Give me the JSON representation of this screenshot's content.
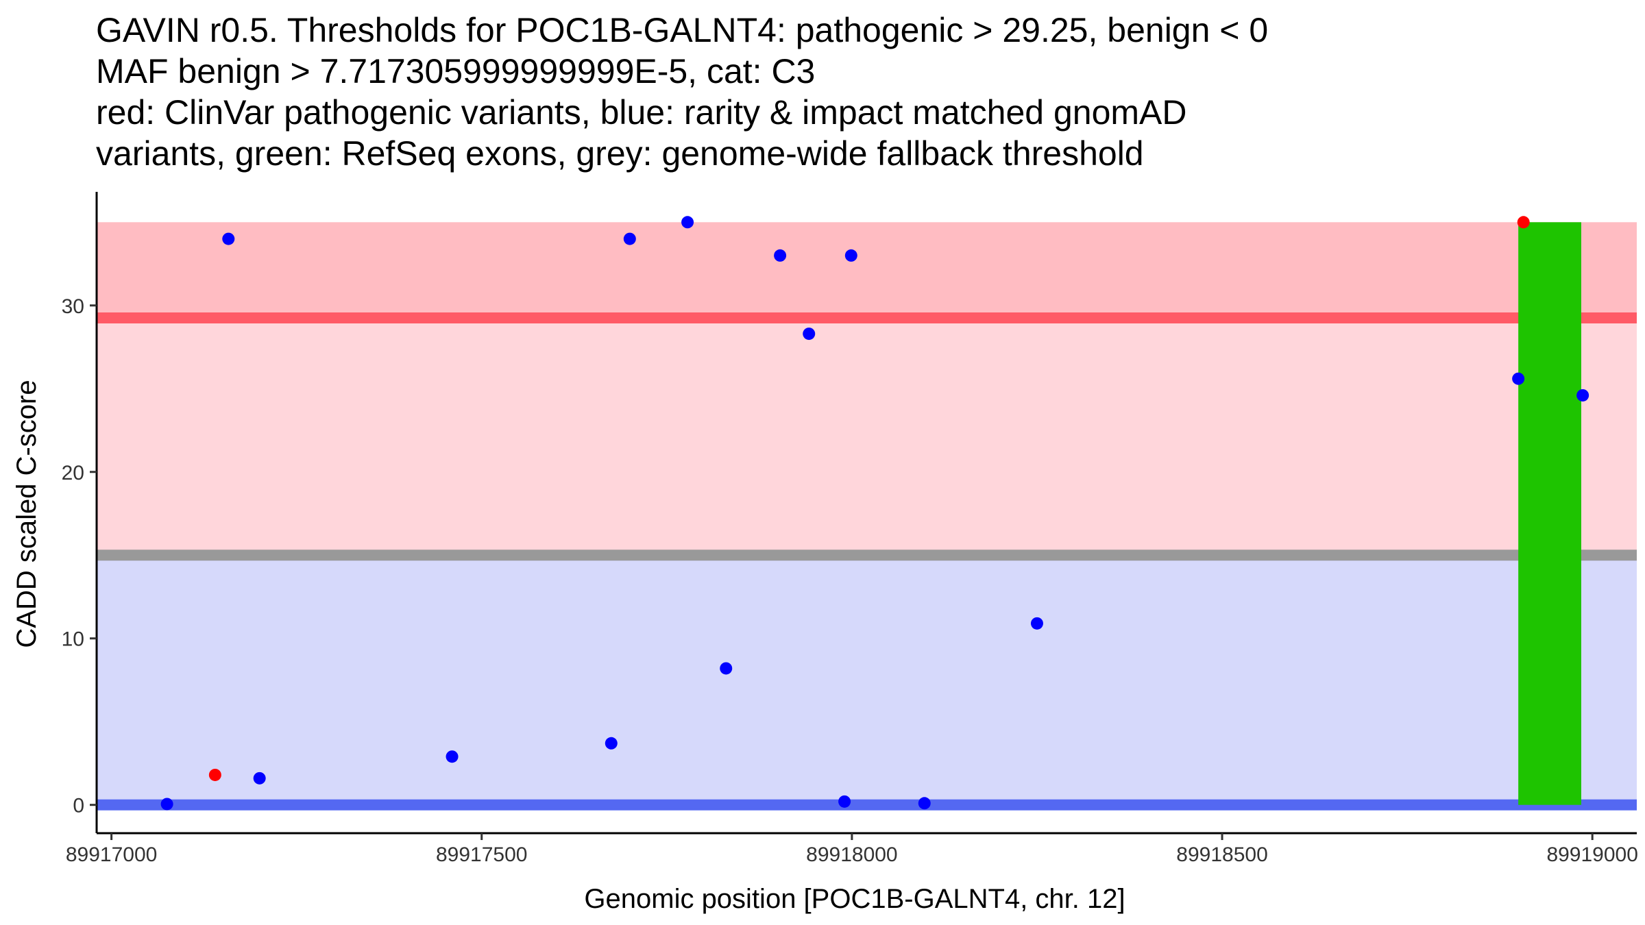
{
  "title_lines": [
    "GAVIN r0.5. Thresholds for POC1B-GALNT4: pathogenic > 29.25, benign < 0",
    "MAF benign > 7.717305999999999E-5, cat: C3",
    "red: ClinVar pathogenic variants, blue: rarity & impact matched gnomAD",
    "variants, green: RefSeq exons, grey: genome-wide fallback threshold"
  ],
  "chart_data": {
    "type": "scatter",
    "xlabel": "Genomic position [POC1B-GALNT4, chr. 12]",
    "ylabel": "CADD scaled C-score",
    "xlim": [
      89916980,
      89919060
    ],
    "ylim": [
      -1.7,
      36.7
    ],
    "x_ticks": [
      89917000,
      89917500,
      89918000,
      89918500,
      89919000
    ],
    "x_tick_labels": [
      "89917000",
      "89917500",
      "89918000",
      "89918500",
      "89919000"
    ],
    "y_ticks": [
      0,
      10,
      20,
      30
    ],
    "y_tick_labels": [
      "0",
      "10",
      "20",
      "30"
    ],
    "regions": [
      {
        "name": "pathogenic-zone",
        "y_from": 29.25,
        "y_to": 35,
        "color": "#ffbcc2"
      },
      {
        "name": "intermediate-zone",
        "y_from": 15,
        "y_to": 29.25,
        "color": "#ffd6db"
      },
      {
        "name": "benign-zone",
        "y_from": 0,
        "y_to": 15,
        "color": "#d6d9fb"
      }
    ],
    "threshold_lines": [
      {
        "name": "pathogenic-threshold",
        "y": 29.25,
        "color": "#ff5a66"
      },
      {
        "name": "fallback-threshold",
        "y": 15,
        "color": "#999999"
      },
      {
        "name": "benign-threshold",
        "y": 0,
        "color": "#5468f2"
      }
    ],
    "exons": [
      {
        "x_from": 89918900,
        "x_to": 89918985,
        "y_from": 0,
        "y_to": 35,
        "color": "#1ec400"
      }
    ],
    "series": [
      {
        "name": "ClinVar pathogenic variants",
        "color": "#ff0000",
        "points": [
          {
            "x": 89917140,
            "y": 1.8
          },
          {
            "x": 89918907,
            "y": 35
          }
        ]
      },
      {
        "name": "gnomAD matched variants",
        "color": "#0000ff",
        "points": [
          {
            "x": 89917075,
            "y": 0.05
          },
          {
            "x": 89917158,
            "y": 34
          },
          {
            "x": 89917200,
            "y": 1.6
          },
          {
            "x": 89917460,
            "y": 2.9
          },
          {
            "x": 89917675,
            "y": 3.7
          },
          {
            "x": 89917700,
            "y": 34
          },
          {
            "x": 89917778,
            "y": 35
          },
          {
            "x": 89917830,
            "y": 8.2
          },
          {
            "x": 89917903,
            "y": 33
          },
          {
            "x": 89917942,
            "y": 28.3
          },
          {
            "x": 89917990,
            "y": 0.2
          },
          {
            "x": 89917999,
            "y": 33
          },
          {
            "x": 89918098,
            "y": 0.1
          },
          {
            "x": 89918250,
            "y": 10.9
          },
          {
            "x": 89918900,
            "y": 25.6
          },
          {
            "x": 89918987,
            "y": 24.6
          }
        ]
      }
    ]
  }
}
